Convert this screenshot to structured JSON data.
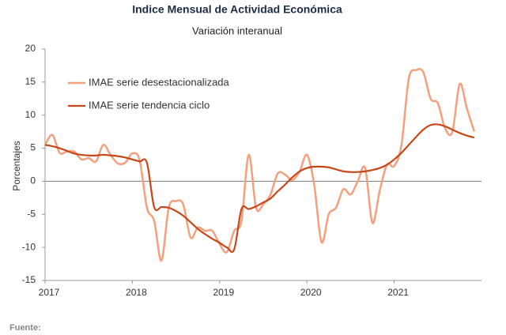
{
  "chart_data": {
    "type": "line",
    "title": "Indice Mensual de  Actividad Económica",
    "subtitle": "Variación interanual",
    "y_label": "Porcentajes",
    "footer": "Fuente:",
    "x": [
      2017,
      2017.083,
      2017.167,
      2017.25,
      2017.333,
      2017.417,
      2017.5,
      2017.583,
      2017.667,
      2017.75,
      2017.833,
      2017.917,
      2018,
      2018.083,
      2018.167,
      2018.25,
      2018.333,
      2018.417,
      2018.5,
      2018.583,
      2018.667,
      2018.75,
      2018.833,
      2018.917,
      2019,
      2019.083,
      2019.167,
      2019.25,
      2019.333,
      2019.417,
      2019.5,
      2019.583,
      2019.667,
      2019.75,
      2019.833,
      2019.917,
      2020,
      2020.083,
      2020.167,
      2020.25,
      2020.333,
      2020.417,
      2020.5,
      2020.583,
      2020.667,
      2020.75,
      2020.833,
      2020.917,
      2021,
      2021.083,
      2021.167,
      2021.25,
      2021.333,
      2021.417,
      2021.5,
      2021.583,
      2021.667,
      2021.75,
      2021.833,
      2021.917
    ],
    "series": [
      {
        "name": "IMAE serie desestacionalizada",
        "color": "#f4a07e",
        "width": 2.5,
        "values": [
          5.5,
          7,
          4.3,
          4.5,
          4.5,
          3.3,
          3.5,
          3.0,
          5.5,
          4.0,
          2.7,
          2.8,
          4.2,
          3.2,
          -4,
          -6,
          -12,
          -4,
          -3,
          -3.5,
          -8.5,
          -7,
          -7.5,
          -7.5,
          -9.5,
          -10.7,
          -7.5,
          -6,
          4,
          -4,
          -3.5,
          -2,
          1.2,
          1,
          0.2,
          1.5,
          4,
          -0.5,
          -9.2,
          -5,
          -4,
          -1.2,
          -2,
          0,
          2,
          -6.3,
          -1.5,
          2.5,
          2.3,
          5.5,
          15.5,
          16.8,
          16.5,
          12.5,
          11.8,
          8,
          7.5,
          14.7,
          11,
          7.5
        ]
      },
      {
        "name": "IMAE serie  tendencia ciclo",
        "color": "#c8471a",
        "width": 2.2,
        "values": [
          5.5,
          5.3,
          5.0,
          4.6,
          4.2,
          4.0,
          3.9,
          3.9,
          4.0,
          3.9,
          3.8,
          3.6,
          3.3,
          3.0,
          2.8,
          -3.9,
          -3.9,
          -4.0,
          -4.5,
          -5.2,
          -6.2,
          -7.2,
          -8.0,
          -8.7,
          -9.3,
          -10.0,
          -10.3,
          -4.2,
          -4.2,
          -3.8,
          -3.2,
          -2.6,
          -1.5,
          -0.5,
          0.6,
          1.5,
          2.0,
          2.2,
          2.2,
          2.1,
          1.8,
          1.5,
          1.4,
          1.4,
          1.5,
          1.7,
          2.0,
          2.5,
          3.3,
          4.3,
          5.5,
          6.7,
          7.8,
          8.5,
          8.6,
          8.3,
          7.8,
          7.3,
          6.9,
          6.6
        ]
      }
    ],
    "xlim": [
      2017,
      2022
    ],
    "xticks": [
      2017,
      2018,
      2019,
      2020,
      2021
    ],
    "ylim": [
      -15,
      20
    ],
    "yticks": [
      -15,
      -10,
      -5,
      0,
      5,
      10,
      15,
      20
    ],
    "grid": false,
    "legend": "upper left"
  }
}
